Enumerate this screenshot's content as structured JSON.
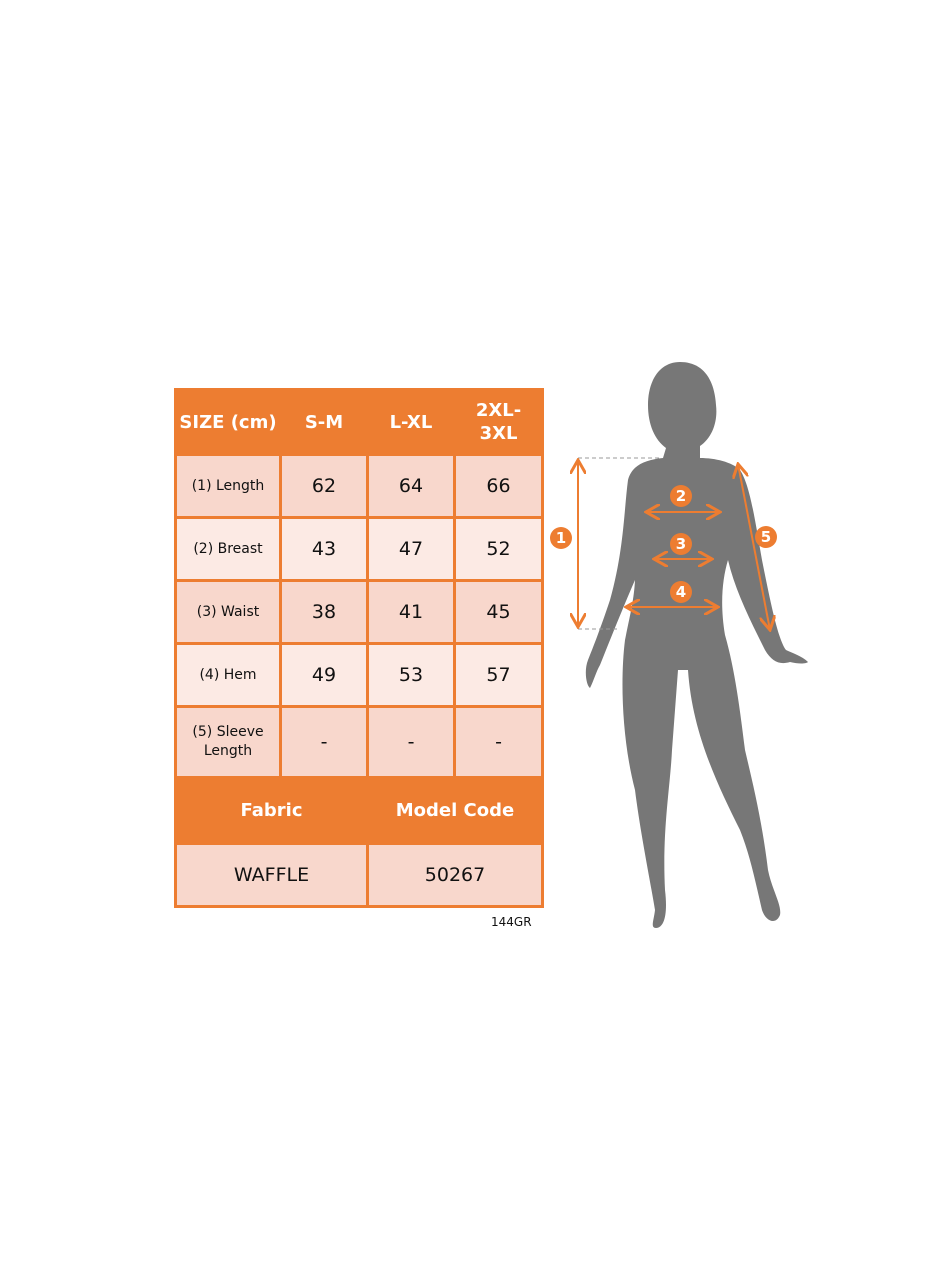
{
  "table": {
    "header": [
      "SIZE (cm)",
      "S-M",
      "L-XL",
      "2XL- 3XL"
    ],
    "rows": [
      {
        "label": "(1) Length",
        "values": [
          "62",
          "64",
          "66"
        ]
      },
      {
        "label": "(2) Breast",
        "values": [
          "43",
          "47",
          "52"
        ]
      },
      {
        "label": "(3) Waist",
        "values": [
          "38",
          "41",
          "45"
        ]
      },
      {
        "label": "(4) Hem",
        "values": [
          "49",
          "53",
          "57"
        ]
      },
      {
        "label": "(5) Sleeve Length",
        "values": [
          "-",
          "-",
          "-"
        ]
      }
    ],
    "footer_header": [
      "Fabric",
      "Model Code"
    ],
    "footer_values": [
      "WAFFLE",
      "50267"
    ]
  },
  "product_code": "144GR",
  "figure": {
    "markers": [
      "1",
      "2",
      "3",
      "4",
      "5"
    ]
  },
  "colors": {
    "accent": "#ED7D31",
    "cell_dark": "#F8D7CC",
    "cell_light": "#FCEAE4",
    "silhouette": "#777777"
  }
}
